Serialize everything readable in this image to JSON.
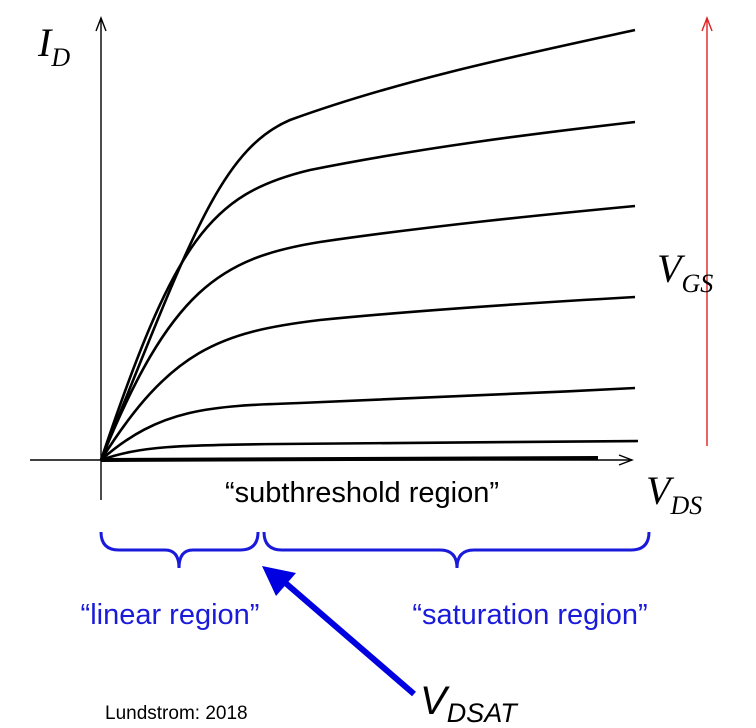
{
  "axes": {
    "y_label_main": "I",
    "y_label_sub": "D",
    "x_label_main": "V",
    "x_label_sub": "DS"
  },
  "gate_arrow": {
    "label_main": "V",
    "label_sub": "GS",
    "color": "#e02020"
  },
  "region_labels": {
    "subthreshold": "“subthreshold region”",
    "linear": "“linear region”",
    "saturation": "“saturation region”",
    "color": "#1a1adb"
  },
  "vdsat": {
    "label_main": "V",
    "label_sub": "DSAT",
    "arrow_color": "#0000e0"
  },
  "credit": "Lundstrom: 2018",
  "curve_family": {
    "description_count": 7,
    "direction": "increasing V_GS upward"
  }
}
